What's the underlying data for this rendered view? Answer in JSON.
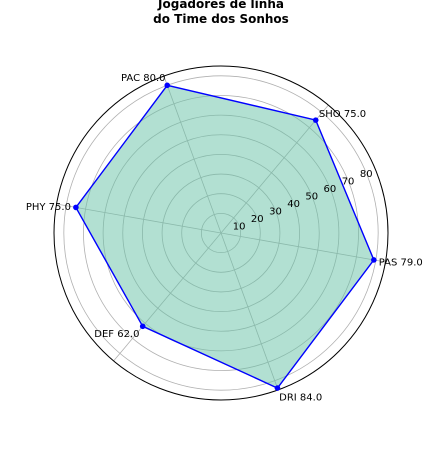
{
  "chart_data": {
    "type": "radar",
    "title_lines": [
      "Jogadores de linha",
      "do Time dos Sonhos"
    ],
    "categories": [
      "PAS",
      "SHO",
      "PAC",
      "PHY",
      "DEF",
      "DRI"
    ],
    "values": [
      79.0,
      75.0,
      80.0,
      75.0,
      62.0,
      84.0
    ],
    "point_labels": [
      "PAS 79.0",
      "SHO 75.0",
      "PAC 80.0",
      "PHY 75.0",
      "DEF 62.0",
      "DRI 84.0"
    ],
    "category_angles_deg": [
      0,
      60,
      120,
      180,
      240,
      300
    ],
    "angle_offset_deg": -10,
    "radial_ticks": [
      10,
      20,
      30,
      40,
      50,
      60,
      70,
      80
    ],
    "rlim": [
      0,
      85
    ],
    "grid": true,
    "colors": {
      "line": "#0000ff",
      "fill": "#66c2a5",
      "grid": "#b0b0b0",
      "frame": "#000000"
    }
  }
}
